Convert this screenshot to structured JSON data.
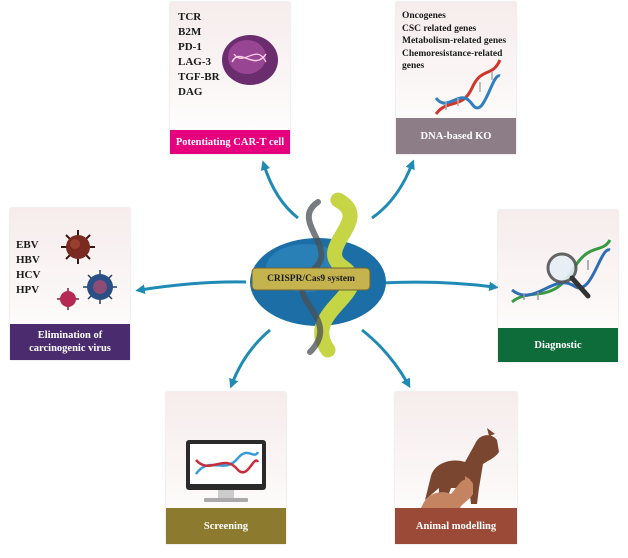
{
  "center": {
    "label": "CRISPR/Cas9 system"
  },
  "panels": {
    "cart": {
      "title": "Potentiating CAR-T cell",
      "items": [
        "TCR",
        "B2M",
        "PD-1",
        "LAG-3",
        "TGF-BR",
        "DAG"
      ],
      "color": "#e6007e"
    },
    "dna_ko": {
      "title": "DNA-based KO",
      "items": [
        "Oncogenes",
        "CSC related genes",
        "Metabolism-related genes",
        "Chemoresistance-related",
        "genes"
      ],
      "color": "#8c7d86"
    },
    "virus": {
      "title_line1": "Elimination of",
      "title_line2": "carcinogenic virus",
      "items": [
        "EBV",
        "HBV",
        "HCV",
        "HPV"
      ],
      "color": "#4a2c6e"
    },
    "diagnostic": {
      "title": "Diagnostic",
      "color": "#0e6b3a"
    },
    "screening": {
      "title": "Screening",
      "color": "#8c7b2e"
    },
    "animal": {
      "title": "Animal modelling",
      "color": "#9b4a37"
    }
  },
  "colors": {
    "arrow": "#1f8bb5",
    "helix_green": "#c5d545",
    "cas9_blue": "#1b6fa6"
  }
}
